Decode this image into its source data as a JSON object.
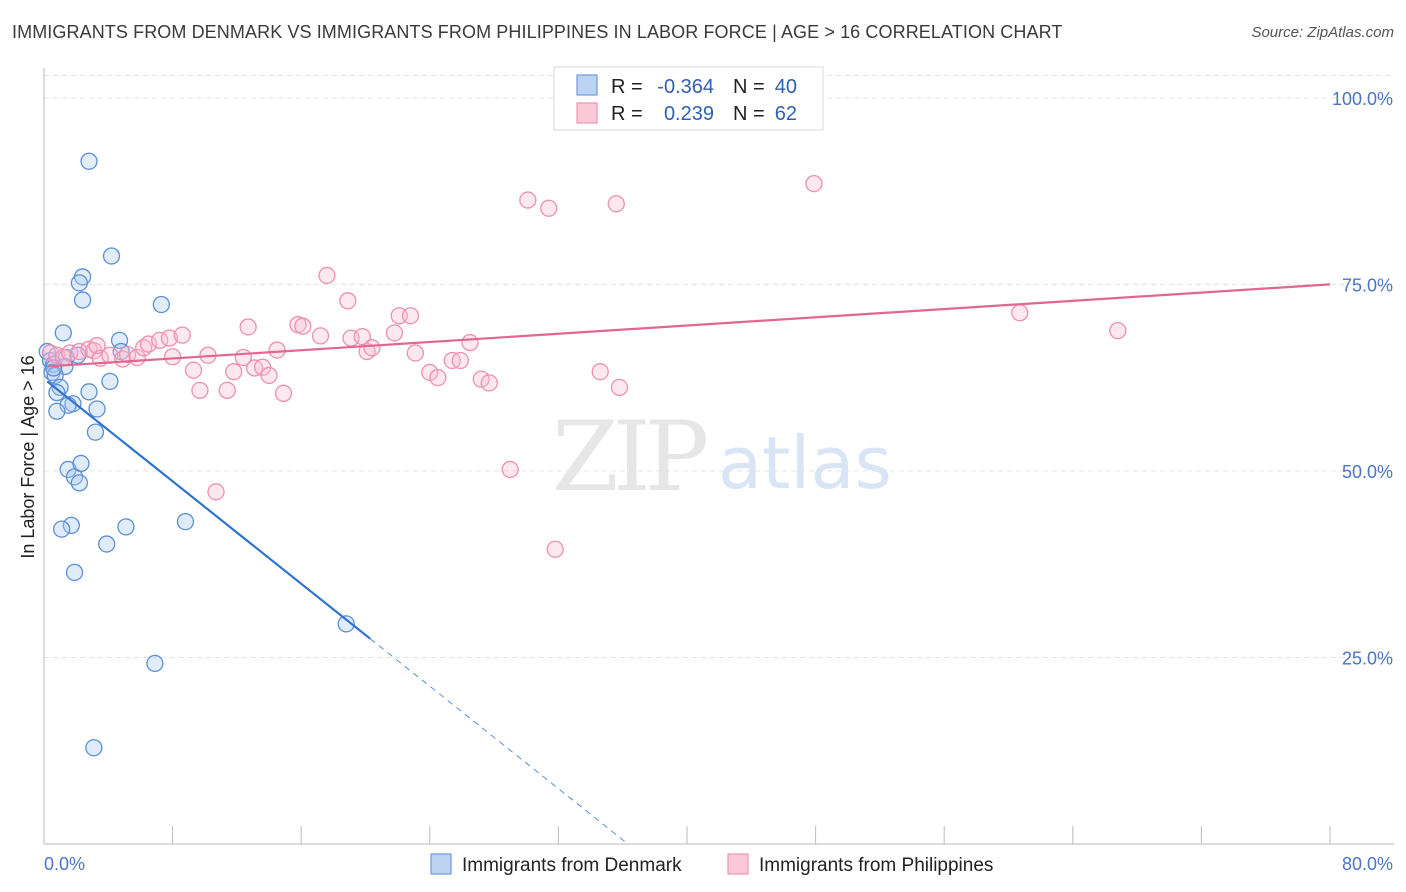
{
  "title": "IMMIGRANTS FROM DENMARK VS IMMIGRANTS FROM PHILIPPINES IN LABOR FORCE | AGE > 16 CORRELATION CHART",
  "source": "Source: ZipAtlas.com",
  "watermark": {
    "zip": "ZIP",
    "atlas": "atlas"
  },
  "colors": {
    "denmark": "#5b8fd6",
    "denmark_line": "#2f74d0",
    "philippines": "#ee8fb0",
    "philippines_line": "#e06890",
    "tick_label": "#4a74c4"
  },
  "chart_data": {
    "type": "scatter",
    "title": "IMMIGRANTS FROM DENMARK VS IMMIGRANTS FROM PHILIPPINES IN LABOR FORCE | AGE > 16 CORRELATION CHART",
    "xlabel": "",
    "ylabel": "In Labor Force | Age > 16",
    "xlim": [
      0,
      80
    ],
    "ylim": [
      0,
      104
    ],
    "x_tick_labels": [
      "0.0%",
      "80.0%"
    ],
    "y_ticks": [
      25,
      50,
      75,
      100
    ],
    "y_tick_labels": [
      "25.0%",
      "50.0%",
      "75.0%",
      "100.0%"
    ],
    "grid": true,
    "legend_placement": "top-center",
    "stats": [
      {
        "r_label": "R =",
        "r": "-0.364",
        "n_label": "N =",
        "n": "40"
      },
      {
        "r_label": "R =",
        "r": "0.239",
        "n_label": "N =",
        "n": "62"
      }
    ],
    "series": [
      {
        "name": "Immigrants from Denmark",
        "trend": {
          "x0": 0.2,
          "y0": 62.0,
          "x1": 20.3,
          "y1": 27.5,
          "dash_to_x": 36.2
        },
        "points": [
          [
            2.8,
            91.5
          ],
          [
            4.2,
            78.8
          ],
          [
            2.4,
            76.0
          ],
          [
            2.2,
            75.2
          ],
          [
            7.3,
            72.3
          ],
          [
            2.4,
            72.9
          ],
          [
            1.2,
            68.5
          ],
          [
            4.7,
            67.5
          ],
          [
            0.2,
            66.0
          ],
          [
            1.4,
            65.2
          ],
          [
            0.4,
            64.8
          ],
          [
            0.6,
            64.3
          ],
          [
            1.3,
            64.0
          ],
          [
            0.5,
            63.2
          ],
          [
            0.7,
            62.8
          ],
          [
            4.1,
            62.0
          ],
          [
            1.0,
            61.2
          ],
          [
            0.8,
            60.5
          ],
          [
            2.8,
            60.6
          ],
          [
            1.8,
            59.0
          ],
          [
            1.5,
            58.8
          ],
          [
            3.3,
            58.3
          ],
          [
            0.8,
            58.0
          ],
          [
            3.2,
            55.2
          ],
          [
            1.5,
            50.2
          ],
          [
            1.9,
            49.2
          ],
          [
            2.2,
            48.4
          ],
          [
            2.3,
            51.0
          ],
          [
            1.7,
            42.7
          ],
          [
            1.1,
            42.2
          ],
          [
            5.1,
            42.5
          ],
          [
            8.8,
            43.2
          ],
          [
            3.9,
            40.2
          ],
          [
            1.9,
            36.4
          ],
          [
            18.8,
            29.5
          ],
          [
            6.9,
            24.2
          ],
          [
            3.1,
            12.9
          ],
          [
            2.1,
            65.5
          ],
          [
            4.8,
            66.0
          ],
          [
            0.6,
            63.8
          ]
        ]
      },
      {
        "name": "Immigrants from Philippines",
        "trend": {
          "x0": 0.2,
          "y0": 64.0,
          "x1": 80.0,
          "y1": 75.0
        },
        "points": [
          [
            0.4,
            65.8
          ],
          [
            0.8,
            65.5
          ],
          [
            1.2,
            65.2
          ],
          [
            1.6,
            65.8
          ],
          [
            2.2,
            66.0
          ],
          [
            2.8,
            66.3
          ],
          [
            3.1,
            66.1
          ],
          [
            3.3,
            66.8
          ],
          [
            3.5,
            65.1
          ],
          [
            4.1,
            65.5
          ],
          [
            4.9,
            65.0
          ],
          [
            5.2,
            65.6
          ],
          [
            5.8,
            65.2
          ],
          [
            6.2,
            66.5
          ],
          [
            6.5,
            67.0
          ],
          [
            7.2,
            67.5
          ],
          [
            7.8,
            67.8
          ],
          [
            8.0,
            65.3
          ],
          [
            8.6,
            68.2
          ],
          [
            9.3,
            63.5
          ],
          [
            9.7,
            60.8
          ],
          [
            10.2,
            65.5
          ],
          [
            10.7,
            47.2
          ],
          [
            11.4,
            60.8
          ],
          [
            11.8,
            63.3
          ],
          [
            12.4,
            65.2
          ],
          [
            12.7,
            69.3
          ],
          [
            13.1,
            63.8
          ],
          [
            13.6,
            63.9
          ],
          [
            14.0,
            62.8
          ],
          [
            14.5,
            66.2
          ],
          [
            14.9,
            60.4
          ],
          [
            15.8,
            69.6
          ],
          [
            16.1,
            69.4
          ],
          [
            17.2,
            68.1
          ],
          [
            17.6,
            76.2
          ],
          [
            18.9,
            72.8
          ],
          [
            19.1,
            67.8
          ],
          [
            19.8,
            68.0
          ],
          [
            20.1,
            66.0
          ],
          [
            20.4,
            66.5
          ],
          [
            21.8,
            68.5
          ],
          [
            22.1,
            70.8
          ],
          [
            22.8,
            70.8
          ],
          [
            23.1,
            65.8
          ],
          [
            24.0,
            63.2
          ],
          [
            24.5,
            62.5
          ],
          [
            25.4,
            64.8
          ],
          [
            25.9,
            64.8
          ],
          [
            26.5,
            67.2
          ],
          [
            27.2,
            62.3
          ],
          [
            27.7,
            61.8
          ],
          [
            29.0,
            50.2
          ],
          [
            30.1,
            86.3
          ],
          [
            31.4,
            85.2
          ],
          [
            31.8,
            39.5
          ],
          [
            34.6,
            63.3
          ],
          [
            35.6,
            85.8
          ],
          [
            35.8,
            61.2
          ],
          [
            47.9,
            88.5
          ],
          [
            60.7,
            71.2
          ],
          [
            66.8,
            68.8
          ]
        ]
      }
    ]
  }
}
